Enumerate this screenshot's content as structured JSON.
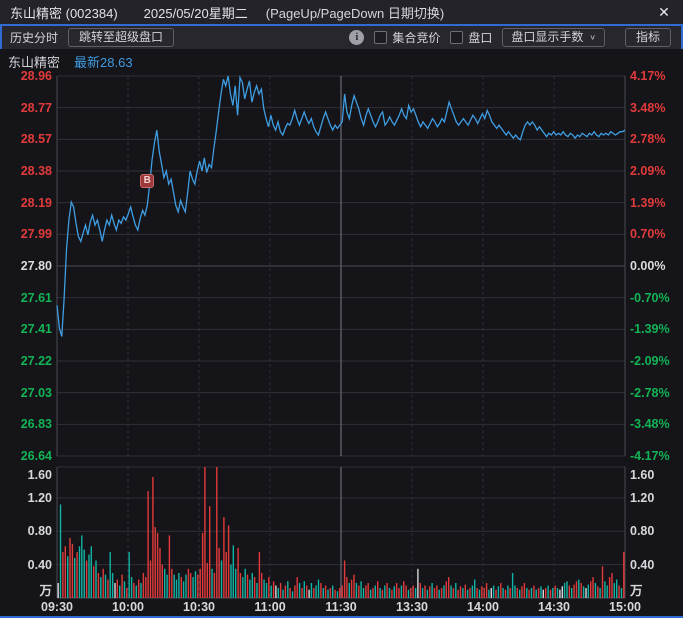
{
  "window": {
    "title": "东山精密 (002384)",
    "date": "2025/05/20星期二",
    "hint": "(PageUp/PageDown 日期切换)",
    "close_icon": "✕"
  },
  "toolbar": {
    "history_label": "历史分时",
    "super_quote_button": "跳转至超级盘口",
    "info_icon": "i",
    "auction_checkbox_label": "集合竞价",
    "quote_checkbox_label": "盘口",
    "lots_dropdown_label": "盘口显示手数",
    "dropdown_chevron": "∨",
    "indicator_button": "指标"
  },
  "chart_header": {
    "stock_name": "东山精密",
    "last_text": "最新28.63"
  },
  "colors": {
    "accent_blue": "#2e6cd3",
    "price_line": "#3f9de2",
    "up_red": "#e23b3b",
    "down_green": "#12b455",
    "vol_up": "#e23a3a",
    "vol_down": "#11b3a4",
    "vol_flat": "#d8d8dc",
    "grid": "#2f2f37",
    "grid_mid": "#4a4a52",
    "session_divider": "#5a5a62"
  },
  "chart_data": {
    "type": "line",
    "title": "东山精密 2025/05/20 分时走势",
    "prev_close": 27.8,
    "last": 28.63,
    "ylim": [
      26.64,
      28.96
    ],
    "left_axis_labels": [
      "28.96",
      "28.77",
      "28.57",
      "28.38",
      "28.19",
      "27.99",
      "27.80",
      "27.61",
      "27.41",
      "27.22",
      "27.03",
      "26.83",
      "26.64"
    ],
    "right_axis_labels": [
      "4.17%",
      "3.48%",
      "2.78%",
      "2.09%",
      "1.39%",
      "0.70%",
      "0.00%",
      "-0.70%",
      "-1.39%",
      "-2.09%",
      "-2.78%",
      "-3.48%",
      "-4.17%"
    ],
    "axis_label_colors": [
      "red",
      "red",
      "red",
      "red",
      "red",
      "red",
      "flat",
      "green",
      "green",
      "green",
      "green",
      "green",
      "green"
    ],
    "volume_axis": {
      "labels": [
        "1.60",
        "1.20",
        "0.80",
        "0.40"
      ],
      "values": [
        1.6,
        1.2,
        0.8,
        0.4
      ],
      "unit": "万",
      "max": 1.57
    },
    "x_axis_labels": [
      "09:30",
      "10:00",
      "10:30",
      "11:00",
      "11:30",
      "13:30",
      "14:00",
      "14:30",
      "15:00"
    ],
    "marker": {
      "label": "B",
      "minute": 38,
      "price": 28.32
    },
    "prices": [
      27.56,
      27.42,
      27.37,
      27.6,
      27.9,
      28.08,
      28.19,
      28.16,
      28.06,
      27.98,
      27.95,
      28.0,
      28.05,
      27.99,
      28.07,
      28.11,
      28.05,
      28.08,
      28.02,
      27.95,
      28.02,
      28.08,
      28.05,
      28.11,
      28.06,
      28.02,
      28.08,
      28.06,
      28.1,
      28.08,
      28.12,
      28.16,
      28.1,
      28.05,
      28.02,
      28.09,
      28.14,
      28.11,
      28.17,
      28.3,
      28.45,
      28.55,
      28.63,
      28.5,
      28.42,
      28.34,
      28.38,
      28.3,
      28.33,
      28.25,
      28.17,
      28.13,
      28.2,
      28.16,
      28.13,
      28.25,
      28.38,
      28.33,
      28.3,
      28.38,
      28.44,
      28.38,
      28.46,
      28.37,
      28.42,
      28.4,
      28.52,
      28.62,
      28.74,
      28.85,
      28.94,
      28.9,
      28.96,
      28.85,
      28.78,
      28.9,
      28.72,
      28.95,
      28.92,
      28.82,
      28.88,
      28.93,
      28.8,
      28.86,
      28.9,
      28.85,
      28.88,
      28.76,
      28.7,
      28.65,
      28.72,
      28.66,
      28.63,
      28.68,
      28.62,
      28.6,
      28.64,
      28.67,
      28.66,
      28.7,
      28.75,
      28.7,
      28.66,
      28.7,
      28.74,
      28.7,
      28.67,
      28.7,
      28.65,
      28.62,
      28.6,
      28.65,
      28.7,
      28.74,
      28.7,
      28.66,
      28.63,
      28.66,
      28.64,
      28.66,
      28.68,
      28.85,
      28.74,
      28.7,
      28.78,
      28.84,
      28.8,
      28.76,
      28.7,
      28.66,
      28.72,
      28.76,
      28.72,
      28.68,
      28.65,
      28.68,
      28.72,
      28.74,
      28.66,
      28.68,
      28.71,
      28.68,
      28.66,
      28.69,
      28.72,
      28.76,
      28.72,
      28.7,
      28.78,
      28.74,
      28.76,
      28.72,
      28.68,
      28.65,
      28.68,
      28.66,
      28.64,
      28.67,
      28.7,
      28.68,
      28.65,
      28.67,
      28.7,
      28.68,
      28.74,
      28.8,
      28.76,
      28.72,
      28.68,
      28.66,
      28.68,
      28.7,
      28.68,
      28.66,
      28.69,
      28.72,
      28.7,
      28.67,
      28.7,
      28.73,
      28.7,
      28.75,
      28.72,
      28.68,
      28.66,
      28.64,
      28.66,
      28.64,
      28.62,
      28.6,
      28.62,
      28.6,
      28.58,
      28.6,
      28.58,
      28.57,
      28.62,
      28.66,
      28.68,
      28.66,
      28.68,
      28.66,
      28.63,
      28.65,
      28.63,
      28.61,
      28.59,
      28.61,
      28.6,
      28.62,
      28.6,
      28.61,
      28.6,
      28.62,
      28.6,
      28.59,
      28.61,
      28.6,
      28.58,
      28.6,
      28.59,
      28.61,
      28.6,
      28.59,
      28.61,
      28.6,
      28.62,
      28.6,
      28.59,
      28.61,
      28.6,
      28.61,
      28.6,
      28.62,
      28.61,
      28.6,
      28.61,
      28.62,
      28.62,
      28.63
    ],
    "volume": [
      "0.18|w",
      "1.12|g",
      "0.55|r",
      "0.62|r",
      "0.50|g",
      "0.72|r",
      "0.65|r",
      "0.48|g",
      "0.55|r",
      "0.62|g",
      "0.75|g",
      "0.58|g",
      "0.45|r",
      "0.52|g",
      "0.62|g",
      "0.38|r",
      "0.45|g",
      "0.30|r",
      "0.25|g",
      "0.35|r",
      "0.28|g",
      "0.22|r",
      "0.55|g",
      "0.30|g",
      "0.18|w",
      "0.22|r",
      "0.15|g",
      "0.28|r",
      "0.20|g",
      "0.12|r",
      "0.55|g",
      "0.25|g",
      "0.18|r",
      "0.15|g",
      "0.22|r",
      "0.18|g",
      "0.30|r",
      "0.25|r",
      "1.28|r",
      "0.45|r",
      "1.45|r",
      "0.85|r",
      "0.78|r",
      "0.60|r",
      "0.40|r",
      "0.35|g",
      "0.28|g",
      "0.75|r",
      "0.35|r",
      "0.28|g",
      "0.22|g",
      "0.30|g",
      "0.25|r",
      "0.20|g",
      "0.28|g",
      "0.35|r",
      "0.30|r",
      "0.25|g",
      "0.32|g",
      "0.28|r",
      "0.35|r",
      "0.78|r",
      "1.57|r",
      "0.42|r",
      "1.10|r",
      "0.35|g",
      "0.30|r",
      "1.57|r",
      "0.60|r",
      "0.45|g",
      "0.97|r",
      "0.55|r",
      "0.87|r",
      "0.40|g",
      "0.63|g",
      "0.35|g",
      "0.60|r",
      "0.30|r",
      "0.25|g",
      "0.35|g",
      "0.28|r",
      "0.22|g",
      "0.30|g",
      "0.25|r",
      "0.18|g",
      "0.55|r",
      "0.30|r",
      "0.22|g",
      "0.18|g",
      "0.25|r",
      "0.15|g",
      "0.20|r",
      "0.15|w",
      "0.12|g",
      "0.18|r",
      "0.10|g",
      "0.15|r",
      "0.20|g",
      "0.12|r",
      "0.08|g",
      "0.15|r",
      "0.25|r",
      "0.18|g",
      "0.12|r",
      "0.20|g",
      "0.15|r",
      "0.10|w",
      "0.18|g",
      "0.12|r",
      "0.15|g",
      "0.22|g",
      "0.18|r",
      "0.12|g",
      "0.15|r",
      "0.10|g",
      "0.12|r",
      "0.15|g",
      "0.10|r",
      "0.08|g",
      "0.12|r",
      "0.15|r",
      "0.45|r",
      "0.25|r",
      "0.18|g",
      "0.22|r",
      "0.28|r",
      "0.18|g",
      "0.15|r",
      "0.20|g",
      "0.12|g",
      "0.15|r",
      "0.18|r",
      "0.10|g",
      "0.12|r",
      "0.15|g",
      "0.20|r",
      "0.12|g",
      "0.10|r",
      "0.15|g",
      "0.18|r",
      "0.12|g",
      "0.10|r",
      "0.14|g",
      "0.18|r",
      "0.12|r",
      "0.15|g",
      "0.20|r",
      "0.15|r",
      "0.10|g",
      "0.12|r",
      "0.15|r",
      "0.12|g",
      "0.35|w",
      "0.18|r",
      "0.12|g",
      "0.15|r",
      "0.10|g",
      "0.14|r",
      "0.18|g",
      "0.12|r",
      "0.15|r",
      "0.10|g",
      "0.12|r",
      "0.15|g",
      "0.20|r",
      "0.25|r",
      "0.15|g",
      "0.12|r",
      "0.18|g",
      "0.10|r",
      "0.14|r",
      "0.12|g",
      "0.16|r",
      "0.10|g",
      "0.12|r",
      "0.15|g",
      "0.22|g",
      "0.12|r",
      "0.10|g",
      "0.14|r",
      "0.12|r",
      "0.18|r",
      "0.10|g",
      "0.12|w",
      "0.15|g",
      "0.10|r",
      "0.14|g",
      "0.18|r",
      "0.12|g",
      "0.10|r",
      "0.15|g",
      "0.12|r",
      "0.30|g",
      "0.15|g",
      "0.12|r",
      "0.10|g",
      "0.14|r",
      "0.18|r",
      "0.12|g",
      "0.10|r",
      "0.12|g",
      "0.15|r",
      "0.10|g",
      "0.12|r",
      "0.14|g",
      "0.10|w",
      "0.12|r",
      "0.15|g",
      "0.10|r",
      "0.12|g",
      "0.15|r",
      "0.12|g",
      "0.10|w",
      "0.14|w",
      "0.18|g",
      "0.20|g",
      "0.15|r",
      "0.12|g",
      "0.16|r",
      "0.20|r",
      "0.22|g",
      "0.18|r",
      "0.14|g",
      "0.12|w",
      "0.16|g",
      "0.20|r",
      "0.25|r",
      "0.18|g",
      "0.14|r",
      "0.12|g",
      "0.38|r",
      "0.20|g",
      "0.15|g",
      "0.25|r",
      "0.30|r",
      "0.18|g",
      "0.22|g",
      "0.15|r",
      "0.12|g",
      "0.55|r"
    ]
  }
}
